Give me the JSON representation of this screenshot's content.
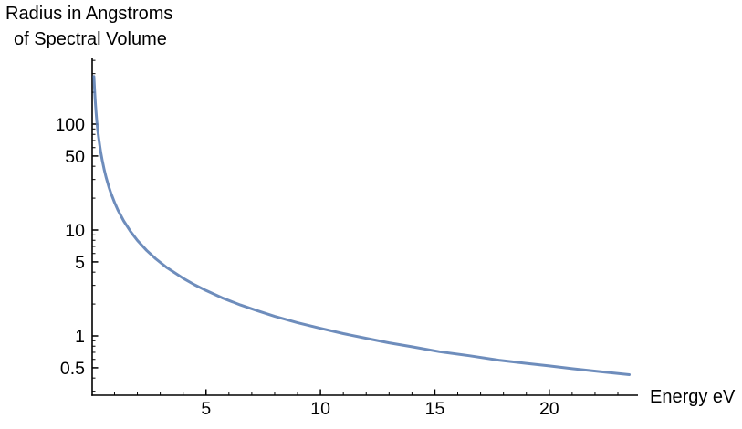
{
  "chart_data": {
    "type": "line",
    "title_line1": "Radius in Angstroms",
    "title_line2": "of Spectral Volume",
    "xlabel": "Energy eV",
    "ylabel": "",
    "x_axis": {
      "scale": "linear",
      "min": 0,
      "max": 23.9,
      "major_ticks": [
        5,
        10,
        15,
        20
      ],
      "major_tick_labels": [
        "5",
        "10",
        "15",
        "20"
      ],
      "minor_ticks": [
        1,
        2,
        3,
        4,
        6,
        7,
        8,
        9,
        11,
        12,
        13,
        14,
        16,
        17,
        18,
        19,
        21,
        22,
        23
      ]
    },
    "y_axis": {
      "scale": "log",
      "min": 0.3,
      "max": 425,
      "major_ticks": [
        100,
        50,
        10,
        5,
        1,
        0.5
      ],
      "major_tick_labels": [
        "100",
        "50",
        "10",
        "5",
        "1",
        "0.5"
      ],
      "minor_ticks": [
        400,
        300,
        200,
        90,
        80,
        70,
        60,
        40,
        30,
        20,
        9,
        8,
        7,
        6,
        4,
        3,
        2,
        0.9,
        0.8,
        0.7,
        0.6,
        0.4,
        0.3
      ]
    },
    "grid": false,
    "legend": "none",
    "series": [
      {
        "name": "radius-of-spectral-volume",
        "color": "#5e81b5",
        "points": [
          [
            0.1,
            282
          ],
          [
            0.11,
            252
          ],
          [
            0.13,
            206
          ],
          [
            0.15,
            174
          ],
          [
            0.17,
            150
          ],
          [
            0.19,
            131
          ],
          [
            0.22,
            110
          ],
          [
            0.26,
            90.4
          ],
          [
            0.3,
            76.3
          ],
          [
            0.35,
            63.5
          ],
          [
            0.4,
            54.2
          ],
          [
            0.47,
            44.7
          ],
          [
            0.55,
            37.1
          ],
          [
            0.63,
            31.5
          ],
          [
            0.75,
            25.6
          ],
          [
            0.85,
            22.1
          ],
          [
            1.0,
            18.2
          ],
          [
            1.15,
            15.4
          ],
          [
            1.4,
            12.2
          ],
          [
            1.7,
            9.68
          ],
          [
            2.0,
            7.98
          ],
          [
            2.4,
            6.42
          ],
          [
            2.8,
            5.35
          ],
          [
            3.3,
            4.4
          ],
          [
            4.0,
            3.5
          ],
          [
            4.5,
            3.04
          ],
          [
            5.0,
            2.68
          ],
          [
            5.7,
            2.29
          ],
          [
            6.5,
            1.96
          ],
          [
            7.2,
            1.74
          ],
          [
            8.0,
            1.53
          ],
          [
            9.0,
            1.33
          ],
          [
            10.0,
            1.18
          ],
          [
            11.0,
            1.05
          ],
          [
            12.0,
            0.95
          ],
          [
            13.0,
            0.86
          ],
          [
            14.0,
            0.79
          ],
          [
            15.2,
            0.71
          ],
          [
            16.5,
            0.65
          ],
          [
            17.8,
            0.59
          ],
          [
            19.0,
            0.55
          ],
          [
            20.0,
            0.52
          ],
          [
            21.0,
            0.49
          ],
          [
            22.2,
            0.46
          ],
          [
            23.5,
            0.43
          ]
        ]
      }
    ]
  },
  "colors": {
    "curve": "#5e81b5",
    "axis": "#000000",
    "text": "#000000",
    "background": "#ffffff"
  }
}
